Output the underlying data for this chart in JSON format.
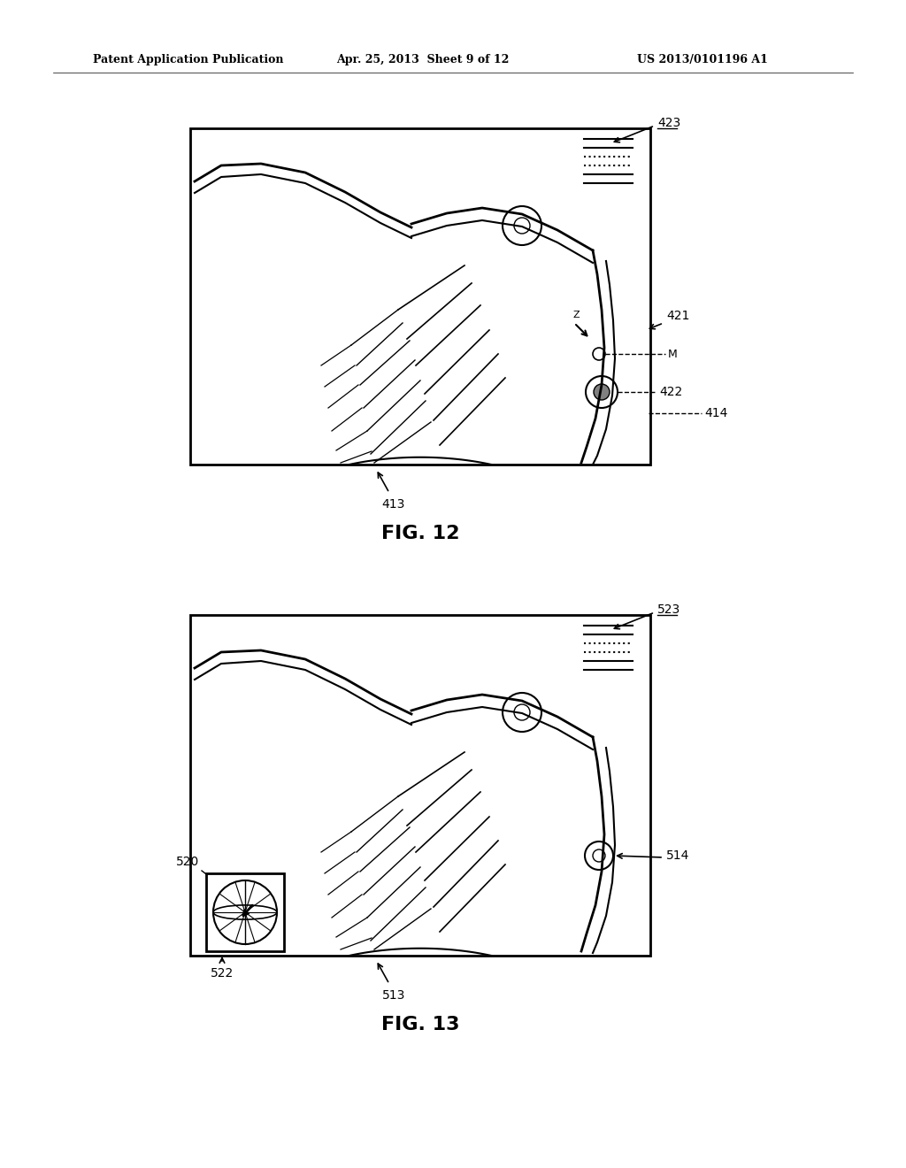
{
  "header_left": "Patent Application Publication",
  "header_middle": "Apr. 25, 2013  Sheet 9 of 12",
  "header_right": "US 2013/0101196 A1",
  "fig12_label": "FIG. 12",
  "fig13_label": "FIG. 13",
  "bg_color": "#ffffff",
  "line_color": "#000000",
  "label_423": "423",
  "label_421": "421",
  "label_422": "422",
  "label_414": "414",
  "label_413": "413",
  "label_M": "M",
  "label_Z": "Z",
  "label_523": "523",
  "label_514": "514",
  "label_520": "520",
  "label_522": "522",
  "label_513": "513"
}
